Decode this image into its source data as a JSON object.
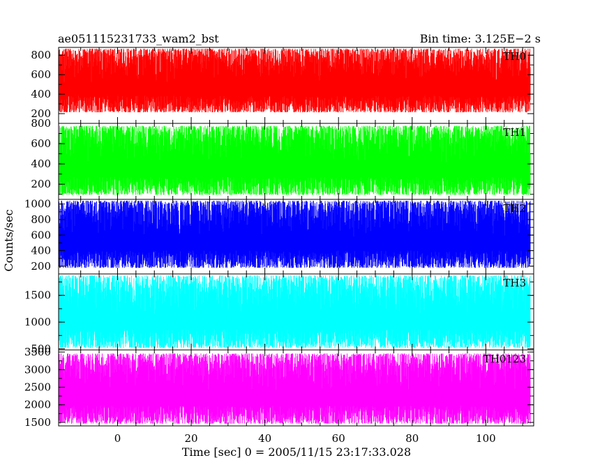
{
  "header": {
    "left": "ae051115231733_wam2_bst",
    "right": "Bin time: 3.125E−2 s"
  },
  "chart_data": {
    "type": "line",
    "title": "ae051115231733_wam2_bst",
    "bin_time": "Bin time: 3.125E−2 s",
    "xlabel": "Time [sec] 0 = 2005/11/15 23:17:33.028",
    "ylabel": "Counts/sec",
    "xlim": [
      -16,
      113
    ],
    "x_ticks": [
      0,
      20,
      40,
      60,
      80,
      100
    ],
    "data_x_range": [
      -15.9,
      112.1
    ],
    "grid": false,
    "legend": "none",
    "panels": [
      {
        "name": "TH0",
        "color": "#ff0000",
        "ylim": [
          100,
          880
        ],
        "y_ticks": [
          200,
          400,
          600,
          800
        ],
        "baseline": 450,
        "min": 200,
        "max": 880
      },
      {
        "name": "TH1",
        "color": "#00ff00",
        "ylim": [
          50,
          800
        ],
        "y_ticks": [
          200,
          400,
          600,
          800
        ],
        "baseline": 370,
        "min": 80,
        "max": 790
      },
      {
        "name": "TH2",
        "color": "#0000ff",
        "ylim": [
          100,
          1060
        ],
        "y_ticks": [
          200,
          400,
          600,
          800,
          1000
        ],
        "baseline": 560,
        "min": 160,
        "max": 1060
      },
      {
        "name": "TH3",
        "color": "#00ffff",
        "ylim": [
          480,
          1900
        ],
        "y_ticks": [
          500,
          1000,
          1500
        ],
        "baseline": 1050,
        "min": 490,
        "max": 1900
      },
      {
        "name": "TH0123",
        "color": "#ff00ff",
        "ylim": [
          1400,
          3560
        ],
        "y_ticks": [
          1500,
          2000,
          2500,
          3000,
          3500
        ],
        "baseline": 2320,
        "min": 1420,
        "max": 3500
      }
    ]
  }
}
